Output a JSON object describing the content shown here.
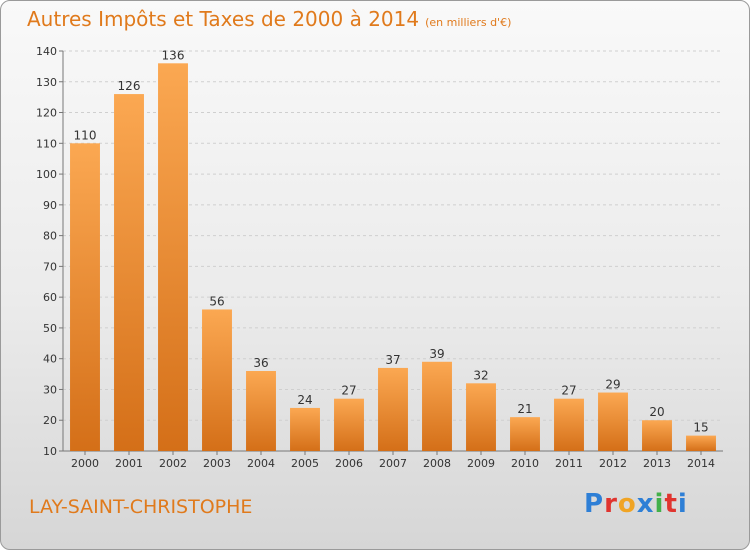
{
  "title": "Autres Impôts et Taxes de 2000 à 2014",
  "subtitle": "(en milliers d'€)",
  "commune": "LAY-SAINT-CHRISTOPHE",
  "brand": {
    "letters": [
      "P",
      "r",
      "o",
      "x",
      "i",
      "t",
      "i"
    ],
    "colors": [
      "#2e7fd6",
      "#e0342f",
      "#f0a424",
      "#2e7fd6",
      "#43b04a",
      "#e0342f",
      "#2e7fd6"
    ]
  },
  "colors": {
    "accent": "#e07a1c",
    "bar_top": "#fba852",
    "bar_bottom": "#d46f18"
  },
  "chart_data": {
    "type": "bar",
    "categories": [
      "2000",
      "2001",
      "2002",
      "2003",
      "2004",
      "2005",
      "2006",
      "2007",
      "2008",
      "2009",
      "2010",
      "2011",
      "2012",
      "2013",
      "2014"
    ],
    "values": [
      110,
      126,
      136,
      56,
      36,
      24,
      27,
      37,
      39,
      32,
      21,
      27,
      29,
      20,
      15
    ],
    "title": "Autres Impôts et Taxes de 2000 à 2014",
    "subtitle": "(en milliers d'€)",
    "ylim": [
      10,
      140
    ],
    "yticks": [
      10,
      20,
      30,
      40,
      50,
      60,
      70,
      80,
      90,
      100,
      110,
      120,
      130,
      140
    ],
    "grid": true,
    "data_labels": true
  }
}
